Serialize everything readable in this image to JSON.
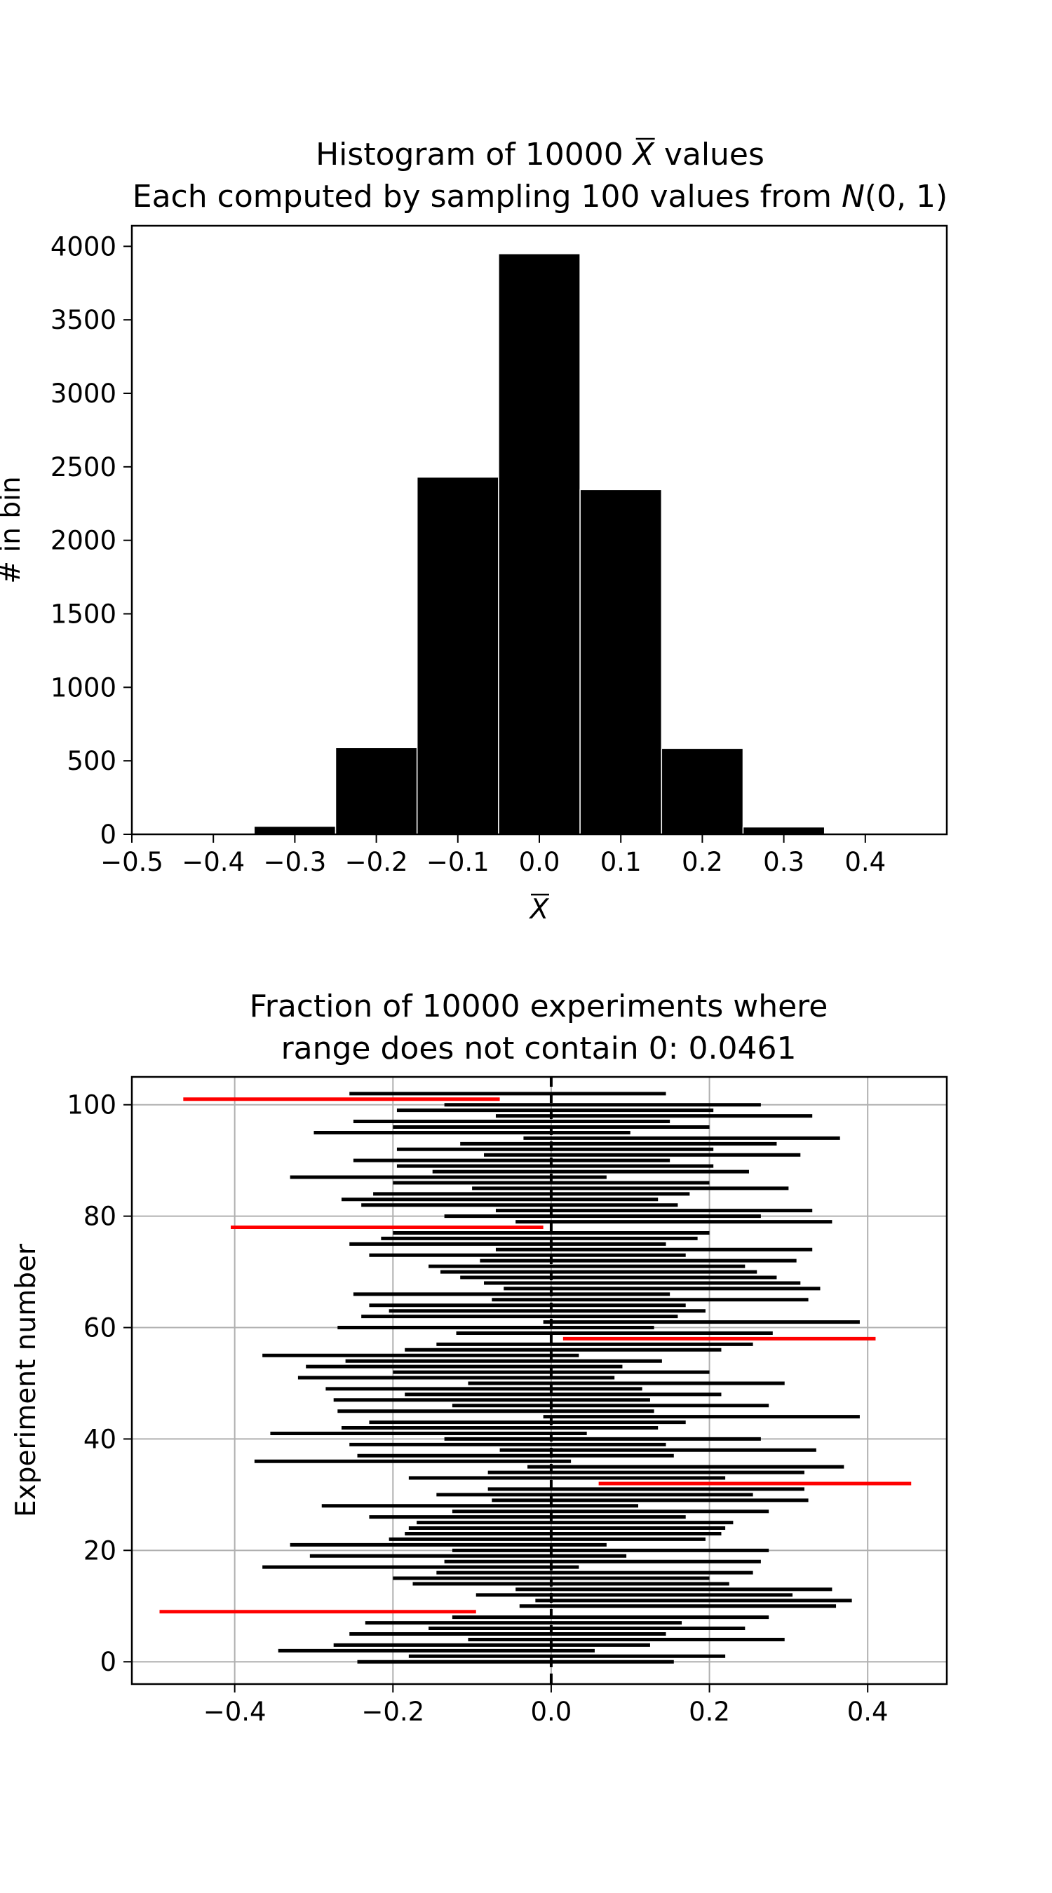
{
  "chart_data": [
    {
      "type": "bar",
      "title_line1_pre": "Histogram of 10000 ",
      "title_line1_var": "X",
      "title_line1_post": " values",
      "title_line2_pre": "Each computed by sampling 100 values from ",
      "title_line2_var": "N",
      "title_line2_post": "(0, 1)",
      "xlabel": "X",
      "ylabel": "# in bin",
      "bin_edges": [
        -0.45,
        -0.35,
        -0.25,
        -0.15,
        -0.05,
        0.05,
        0.15,
        0.25,
        0.35,
        0.45
      ],
      "values": [
        8,
        55,
        590,
        2430,
        3950,
        2345,
        585,
        50,
        6
      ],
      "xlim": [
        -0.5,
        0.5
      ],
      "ylim": [
        0,
        4140
      ],
      "xticks": [
        -0.5,
        -0.4,
        -0.3,
        -0.2,
        -0.1,
        0.0,
        0.1,
        0.2,
        0.3,
        0.4
      ],
      "xtick_labels": [
        "−0.5",
        "−0.4",
        "−0.3",
        "−0.2",
        "−0.1",
        "0.0",
        "0.1",
        "0.2",
        "0.3",
        "0.4"
      ],
      "yticks": [
        0,
        500,
        1000,
        1500,
        2000,
        2500,
        3000,
        3500,
        4000
      ],
      "ytick_labels": [
        "0",
        "500",
        "1000",
        "1500",
        "2000",
        "2500",
        "3000",
        "3500",
        "4000"
      ],
      "grid": false,
      "bar_color": "#000000",
      "edge_color": "#ffffff"
    },
    {
      "type": "interval",
      "title_line1": "Fraction of 10000 experiments where",
      "title_line2": "range does not contain 0: 0.0461",
      "xlabel": "",
      "ylabel": "Experiment number",
      "xlim": [
        -0.53,
        0.5
      ],
      "ylim": [
        -4,
        105
      ],
      "xticks": [
        -0.4,
        -0.2,
        0.0,
        0.2,
        0.4
      ],
      "xtick_labels": [
        "−0.4",
        "−0.2",
        "0.0",
        "0.2",
        "0.4"
      ],
      "yticks": [
        0,
        20,
        40,
        60,
        80,
        100
      ],
      "ytick_labels": [
        "0",
        "20",
        "40",
        "60",
        "80",
        "100"
      ],
      "grid": true,
      "reference_line_x": 0,
      "color_contains_zero": "#000000",
      "color_excludes_zero": "#ff0000",
      "intervals": [
        [
          -0.245,
          0.155
        ],
        [
          -0.18,
          0.22
        ],
        [
          -0.345,
          0.055
        ],
        [
          -0.275,
          0.125
        ],
        [
          -0.105,
          0.295
        ],
        [
          -0.255,
          0.145
        ],
        [
          -0.155,
          0.245
        ],
        [
          -0.235,
          0.165
        ],
        [
          -0.125,
          0.275
        ],
        [
          -0.495,
          -0.095
        ],
        [
          -0.04,
          0.36
        ],
        [
          -0.02,
          0.38
        ],
        [
          -0.095,
          0.305
        ],
        [
          -0.045,
          0.355
        ],
        [
          -0.175,
          0.225
        ],
        [
          -0.2,
          0.2
        ],
        [
          -0.145,
          0.255
        ],
        [
          -0.365,
          0.035
        ],
        [
          -0.135,
          0.265
        ],
        [
          -0.305,
          0.095
        ],
        [
          -0.125,
          0.275
        ],
        [
          -0.33,
          0.07
        ],
        [
          -0.205,
          0.195
        ],
        [
          -0.185,
          0.215
        ],
        [
          -0.18,
          0.22
        ],
        [
          -0.17,
          0.23
        ],
        [
          -0.23,
          0.17
        ],
        [
          -0.125,
          0.275
        ],
        [
          -0.29,
          0.11
        ],
        [
          -0.075,
          0.325
        ],
        [
          -0.145,
          0.255
        ],
        [
          -0.08,
          0.32
        ],
        [
          0.06,
          0.455
        ],
        [
          -0.18,
          0.22
        ],
        [
          -0.08,
          0.32
        ],
        [
          -0.03,
          0.37
        ],
        [
          -0.375,
          0.025
        ],
        [
          -0.245,
          0.155
        ],
        [
          -0.065,
          0.335
        ],
        [
          -0.255,
          0.145
        ],
        [
          -0.135,
          0.265
        ],
        [
          -0.355,
          0.045
        ],
        [
          -0.265,
          0.135
        ],
        [
          -0.23,
          0.17
        ],
        [
          -0.01,
          0.39
        ],
        [
          -0.27,
          0.13
        ],
        [
          -0.125,
          0.275
        ],
        [
          -0.275,
          0.125
        ],
        [
          -0.185,
          0.215
        ],
        [
          -0.285,
          0.115
        ],
        [
          -0.105,
          0.295
        ],
        [
          -0.32,
          0.08
        ],
        [
          -0.2,
          0.2
        ],
        [
          -0.31,
          0.09
        ],
        [
          -0.26,
          0.14
        ],
        [
          -0.365,
          0.035
        ],
        [
          -0.185,
          0.215
        ],
        [
          -0.145,
          0.255
        ],
        [
          0.015,
          0.41
        ],
        [
          -0.12,
          0.28
        ],
        [
          -0.27,
          0.13
        ],
        [
          -0.01,
          0.39
        ],
        [
          -0.24,
          0.16
        ],
        [
          -0.205,
          0.195
        ],
        [
          -0.23,
          0.17
        ],
        [
          -0.075,
          0.325
        ],
        [
          -0.25,
          0.15
        ],
        [
          -0.06,
          0.34
        ],
        [
          -0.085,
          0.315
        ],
        [
          -0.115,
          0.285
        ],
        [
          -0.14,
          0.26
        ],
        [
          -0.155,
          0.245
        ],
        [
          -0.09,
          0.31
        ],
        [
          -0.23,
          0.17
        ],
        [
          -0.07,
          0.33
        ],
        [
          -0.255,
          0.145
        ],
        [
          -0.215,
          0.185
        ],
        [
          -0.2,
          0.2
        ],
        [
          -0.405,
          -0.01
        ],
        [
          -0.045,
          0.355
        ],
        [
          -0.135,
          0.265
        ],
        [
          -0.07,
          0.33
        ],
        [
          -0.24,
          0.16
        ],
        [
          -0.265,
          0.135
        ],
        [
          -0.225,
          0.175
        ],
        [
          -0.1,
          0.3
        ],
        [
          -0.2,
          0.2
        ],
        [
          -0.33,
          0.07
        ],
        [
          -0.15,
          0.25
        ],
        [
          -0.195,
          0.205
        ],
        [
          -0.25,
          0.15
        ],
        [
          -0.085,
          0.315
        ],
        [
          -0.195,
          0.205
        ],
        [
          -0.115,
          0.285
        ],
        [
          -0.035,
          0.365
        ],
        [
          -0.3,
          0.1
        ],
        [
          -0.2,
          0.2
        ],
        [
          -0.25,
          0.15
        ],
        [
          -0.07,
          0.33
        ],
        [
          -0.195,
          0.205
        ],
        [
          -0.135,
          0.265
        ],
        [
          -0.465,
          -0.065
        ],
        [
          -0.255,
          0.145
        ]
      ]
    }
  ]
}
